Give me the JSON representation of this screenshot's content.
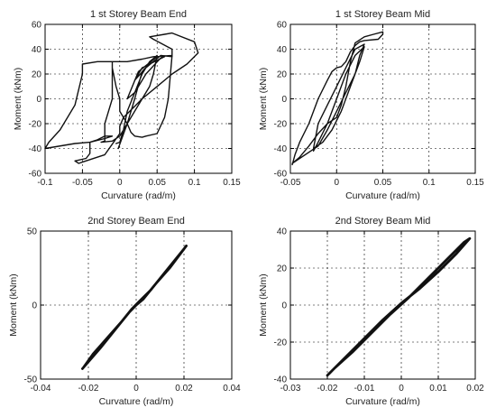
{
  "chart_data": [
    {
      "type": "line",
      "title": "1 st Storey Beam End",
      "xlabel": "Curvature (rad/m)",
      "ylabel": "Moment (kNm)",
      "xlim": [
        -0.1,
        0.15
      ],
      "ylim": [
        -60,
        60
      ],
      "xticks": [
        -0.1,
        -0.05,
        0,
        0.05,
        0.1,
        0.15
      ],
      "xtick_labels": [
        "-0.1",
        "-0.05",
        "0",
        "0.05",
        "0.1",
        "0.15"
      ],
      "yticks": [
        -60,
        -40,
        -20,
        0,
        20,
        40,
        60
      ],
      "ytick_labels": [
        "-60",
        "-40",
        "-20",
        "0",
        "20",
        "40",
        "60"
      ],
      "grid": true,
      "series": [
        {
          "x": [
            -0.002,
            0.01,
            0.02,
            0.03,
            0.045,
            0.05,
            0.025,
            0.01,
            0.02,
            0.035,
            0.055,
            0.06,
            0.03,
            0.02,
            0.035,
            0.055,
            0.07,
            0.07,
            0.045,
            0.04,
            0.06,
            0.07,
            0.1,
            0.105,
            0.09,
            0.07,
            0.05,
            0.03,
            0.02,
            0.005,
            0.0,
            0.0,
            -0.02,
            -0.05,
            -0.055,
            -0.06,
            -0.045,
            -0.04,
            -0.04,
            -0.02,
            -0.01,
            -0.02,
            -0.03,
            -0.04,
            -0.06,
            -0.1,
            -0.095,
            -0.08,
            -0.06,
            -0.05,
            -0.05,
            -0.03,
            -0.01,
            -0.01,
            -0.005,
            0.0,
            0.0,
            0.01,
            0.015,
            0.02,
            0.03,
            0.035,
            0.05,
            0.06,
            0.065,
            0.07,
            0.045,
            0.03,
            0.01,
            -0.01,
            -0.01,
            -0.02,
            -0.02,
            -0.025,
            -0.01,
            0.0,
            0.01,
            0.03,
            0.04,
            0.045,
            0.05,
            0.04,
            0.03,
            0.02,
            0.01,
            0.005,
            0.0,
            -0.005
          ],
          "y": [
            -40,
            -20,
            0,
            22,
            32,
            34,
            22,
            0,
            5,
            20,
            33,
            34,
            25,
            15,
            25,
            35,
            34,
            40,
            48,
            50,
            52,
            53,
            46,
            37,
            28,
            20,
            10,
            0,
            -6,
            -15,
            -22,
            -28,
            -45,
            -51,
            -52,
            -50,
            -48,
            -44,
            -35,
            -32,
            -30,
            -30,
            -33,
            -35,
            -36,
            -40,
            -35,
            -25,
            -5,
            20,
            28,
            30,
            30,
            25,
            10,
            0,
            -10,
            -20,
            -27,
            -30,
            -31,
            -30,
            -28,
            -15,
            0,
            35,
            34,
            32,
            30,
            30,
            0,
            -20,
            -34,
            -35,
            -34,
            -30,
            -20,
            0,
            10,
            20,
            35,
            30,
            20,
            5,
            -10,
            -25,
            -35,
            -36
          ]
        }
      ]
    },
    {
      "type": "line",
      "title": "1 st Storey Beam Mid",
      "xlabel": "Curvature (rad/m)",
      "ylabel": "Moment (kNm)",
      "xlim": [
        -0.05,
        0.15
      ],
      "ylim": [
        -60,
        60
      ],
      "xticks": [
        -0.05,
        0,
        0.05,
        0.1,
        0.15
      ],
      "xtick_labels": [
        "-0.05",
        "0",
        "0.05",
        "0.1",
        "0.15"
      ],
      "yticks": [
        -60,
        -40,
        -20,
        0,
        20,
        40,
        60
      ],
      "ytick_labels": [
        "-60",
        "-40",
        "-20",
        "0",
        "20",
        "40",
        "60"
      ],
      "grid": true,
      "series": [
        {
          "x": [
            -0.048,
            -0.045,
            -0.04,
            -0.03,
            -0.02,
            -0.01,
            -0.005,
            0.0,
            0.005,
            0.01,
            0.015,
            0.02,
            0.025,
            0.03,
            0.045,
            0.05,
            0.05,
            0.04,
            0.03,
            0.02,
            0.015,
            0.01,
            0.005,
            0.0,
            -0.01,
            -0.02,
            -0.03,
            -0.04,
            -0.048,
            -0.02,
            -0.01,
            0.0,
            0.01,
            0.02,
            0.025,
            0.03,
            0.02,
            0.01,
            0.0,
            -0.01,
            -0.02,
            -0.025,
            -0.015,
            -0.005,
            0.005,
            0.015,
            0.025,
            0.03,
            0.02,
            0.01,
            0.0,
            -0.01,
            -0.02,
            -0.025
          ],
          "y": [
            -53,
            -45,
            -35,
            -20,
            0,
            15,
            22,
            25,
            26,
            30,
            38,
            43,
            46,
            47,
            48,
            52,
            54,
            52,
            50,
            45,
            30,
            10,
            -5,
            -15,
            -20,
            -28,
            -38,
            -47,
            -52,
            -38,
            -25,
            -10,
            5,
            20,
            35,
            44,
            40,
            25,
            10,
            -5,
            -20,
            -40,
            -35,
            -25,
            -10,
            10,
            30,
            42,
            35,
            20,
            0,
            -20,
            -35,
            -42
          ]
        }
      ]
    },
    {
      "type": "line",
      "title": "2nd Storey Beam End",
      "xlabel": "Curvature (rad/m)",
      "ylabel": "Moment (kNm)",
      "xlim": [
        -0.04,
        0.04
      ],
      "ylim": [
        -50,
        50
      ],
      "xticks": [
        -0.04,
        -0.02,
        0,
        0.02,
        0.04
      ],
      "xtick_labels": [
        "-0.04",
        "-0.02",
        "0",
        "0.02",
        "0.04"
      ],
      "yticks": [
        -50,
        0,
        50
      ],
      "ytick_labels": [
        "-50",
        "0",
        "50"
      ],
      "grid": true,
      "series": [
        {
          "x": [
            -0.0225,
            -0.015,
            -0.008,
            -0.003,
            0.0,
            0.003,
            0.008,
            0.014,
            0.021,
            0.02,
            0.012,
            0.006,
            0.001,
            -0.002,
            -0.006,
            -0.012,
            -0.018,
            -0.022
          ],
          "y": [
            -43,
            -29,
            -15,
            -5,
            0,
            4,
            14,
            25,
            40,
            38,
            22,
            10,
            2,
            -3,
            -11,
            -22,
            -33,
            -42
          ]
        }
      ]
    },
    {
      "type": "line",
      "title": "2nd Storey Beam Mid",
      "xlabel": "Curvature (rad/m)",
      "ylabel": "Moment (kNm)",
      "xlim": [
        -0.03,
        0.02
      ],
      "ylim": [
        -40,
        40
      ],
      "xticks": [
        -0.03,
        -0.02,
        -0.01,
        0,
        0.01,
        0.02
      ],
      "xtick_labels": [
        "-0.03",
        "-0.02",
        "-0.01",
        "0",
        "0.01",
        "0.02"
      ],
      "yticks": [
        -40,
        -20,
        0,
        20,
        40
      ],
      "ytick_labels": [
        "-40",
        "-20",
        "0",
        "20",
        "40"
      ],
      "grid": true,
      "series": [
        {
          "x": [
            -0.02,
            -0.015,
            -0.01,
            -0.005,
            0.0,
            0.005,
            0.01,
            0.015,
            0.0185,
            0.017,
            0.012,
            0.007,
            0.002,
            -0.003,
            -0.008,
            -0.013,
            -0.018,
            -0.0195
          ],
          "y": [
            -38,
            -28,
            -18,
            -8,
            1,
            9,
            18,
            28,
            36,
            34,
            24,
            14,
            4,
            -5,
            -15,
            -25,
            -34,
            -37
          ]
        }
      ]
    }
  ]
}
